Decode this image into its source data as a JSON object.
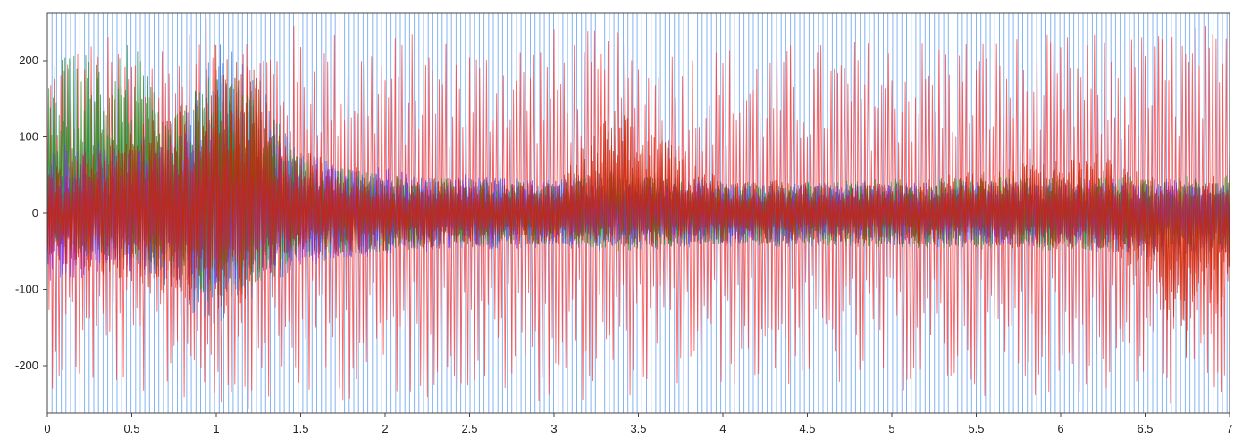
{
  "chart_data": {
    "type": "line",
    "title": "",
    "xlabel": "",
    "ylabel": "",
    "xlim": [
      0,
      7
    ],
    "ylim": [
      -262,
      262
    ],
    "x_ticks": [
      0,
      0.5,
      1,
      1.5,
      2,
      2.5,
      3,
      3.5,
      4,
      4.5,
      5,
      5.5,
      6,
      6.5,
      7
    ],
    "x_tick_labels": [
      "0",
      "0.5",
      "1",
      "1.5",
      "2",
      "2.5",
      "3",
      "3.5",
      "4",
      "4.5",
      "5",
      "5.5",
      "6",
      "6.5",
      "7"
    ],
    "y_ticks": [
      200,
      100,
      0,
      -100,
      -200
    ],
    "y_tick_labels": [
      "200",
      "100",
      "0",
      "-100",
      "-200"
    ],
    "grid": false,
    "legend": "none",
    "series": [
      {
        "color": "#ff3030",
        "envelope_x": [
          0,
          0.25,
          0.5,
          0.75,
          1.0,
          1.25,
          1.5,
          2.0,
          2.5,
          3.0,
          3.35,
          3.5,
          4.0,
          4.5,
          5.0,
          5.5,
          6.0,
          6.5,
          6.75,
          7.0
        ],
        "envelope_upper": [
          220,
          230,
          240,
          245,
          260,
          255,
          250,
          240,
          235,
          245,
          240,
          230,
          225,
          225,
          235,
          240,
          235,
          240,
          255,
          245
        ],
        "envelope_lower": [
          -230,
          -235,
          -240,
          -245,
          -260,
          -255,
          -250,
          -245,
          -240,
          -250,
          -245,
          -240,
          -230,
          -230,
          -235,
          -240,
          -240,
          -245,
          -262,
          -250
        ]
      },
      {
        "color": "#2a6fd6",
        "envelope_x": [
          0,
          0.5,
          0.85,
          1.0,
          1.2,
          1.5,
          2.0,
          3.0,
          3.35,
          4.0,
          5.0,
          6.0,
          6.5,
          7.0
        ],
        "envelope_upper": [
          60,
          70,
          150,
          230,
          200,
          80,
          50,
          45,
          60,
          40,
          40,
          40,
          40,
          40
        ],
        "envelope_lower": [
          -60,
          -60,
          -130,
          -150,
          -120,
          -70,
          -50,
          -45,
          -50,
          -45,
          -45,
          -45,
          -60,
          -55
        ]
      },
      {
        "color": "#228b22",
        "envelope_x": [
          0,
          0.3,
          0.5,
          0.7,
          1.0,
          1.3,
          1.5,
          2.0,
          3.0,
          3.35,
          4.0,
          5.0,
          6.0,
          7.0
        ],
        "envelope_upper": [
          200,
          220,
          235,
          120,
          200,
          150,
          70,
          50,
          40,
          55,
          40,
          45,
          50,
          50
        ],
        "envelope_lower": [
          -50,
          -55,
          -60,
          -80,
          -120,
          -90,
          -60,
          -50,
          -40,
          -50,
          -40,
          -45,
          -50,
          -45
        ]
      },
      {
        "color": "#8a2be2",
        "envelope_x": [
          0,
          0.5,
          1.0,
          1.5,
          2.0,
          3.0,
          4.0,
          5.0,
          6.0,
          7.0
        ],
        "envelope_upper": [
          90,
          100,
          110,
          80,
          60,
          45,
          40,
          40,
          45,
          45
        ],
        "envelope_lower": [
          -90,
          -80,
          -100,
          -70,
          -55,
          -45,
          -40,
          -40,
          -45,
          -50
        ]
      },
      {
        "color": "#cc2200",
        "envelope_x": [
          0,
          0.85,
          1.0,
          1.2,
          1.4,
          2.0,
          3.0,
          3.35,
          4.0,
          5.0,
          6.2,
          6.5,
          6.75,
          7.0
        ],
        "envelope_upper": [
          60,
          150,
          230,
          210,
          90,
          50,
          40,
          140,
          45,
          40,
          80,
          50,
          55,
          50
        ],
        "envelope_lower": [
          -60,
          -120,
          -140,
          -110,
          -60,
          -50,
          -40,
          -45,
          -40,
          -40,
          -50,
          -90,
          -200,
          -120
        ]
      }
    ]
  }
}
